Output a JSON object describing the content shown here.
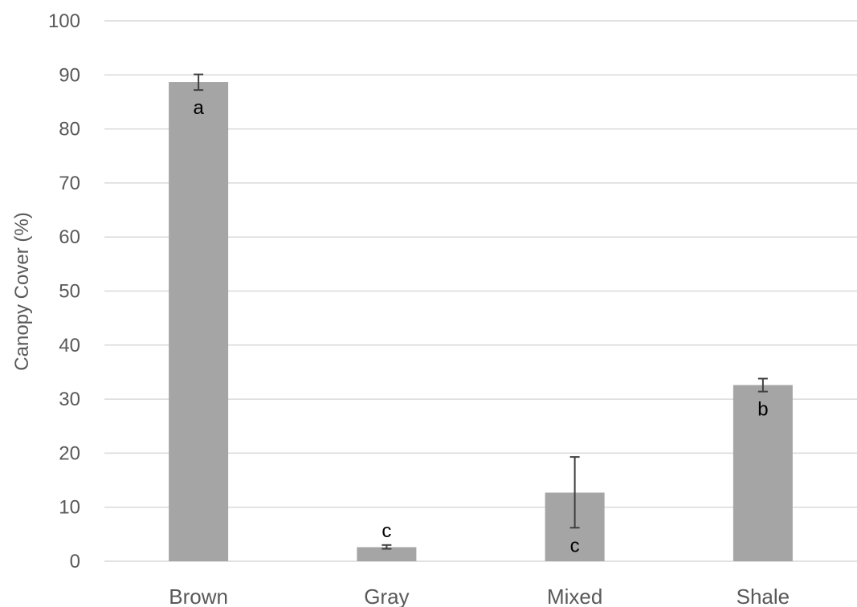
{
  "chart_data": {
    "type": "bar",
    "title": "",
    "xlabel": "",
    "ylabel": "Canopy Cover (%)",
    "ylim": [
      0,
      100
    ],
    "yticks": [
      0,
      10,
      20,
      30,
      40,
      50,
      60,
      70,
      80,
      90,
      100
    ],
    "grid": true,
    "categories": [
      "Brown",
      "Gray",
      "Mixed",
      "Shale"
    ],
    "values": [
      88.7,
      2.6,
      12.7,
      32.6
    ],
    "error_low": [
      87.2,
      2.3,
      6.2,
      31.4
    ],
    "error_high": [
      90.1,
      3.0,
      19.3,
      33.8
    ],
    "letters": [
      "a",
      "c",
      "c",
      "b"
    ],
    "bar_color": "#a5a5a5",
    "grid_color": "#d9d9d9",
    "error_color": "#404040"
  }
}
